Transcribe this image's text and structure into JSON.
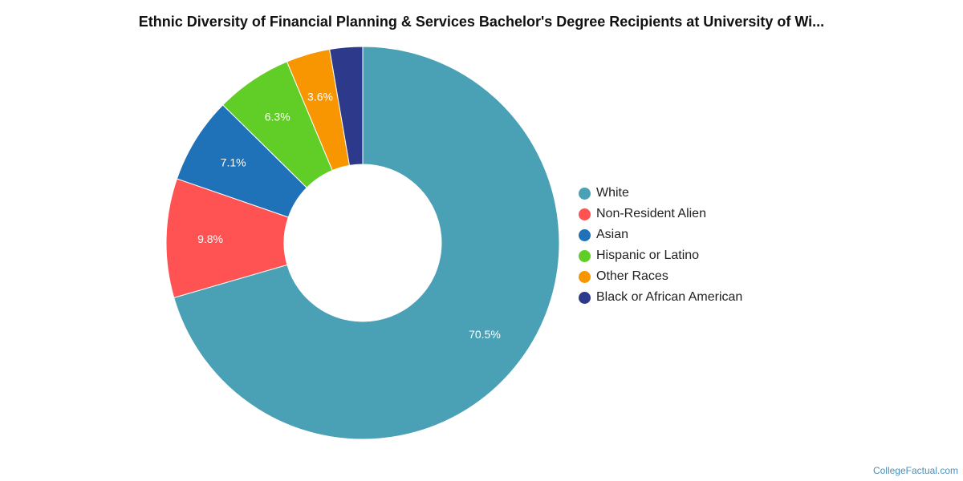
{
  "chart_data": {
    "type": "pie",
    "title": "Ethnic Diversity of Financial Planning & Services Bachelor's Degree Recipients at University of Wi...",
    "slices": [
      {
        "name": "White",
        "value": 70.5,
        "label": "70.5%",
        "color": "#4aa0b5"
      },
      {
        "name": "Non-Resident Alien",
        "value": 9.8,
        "label": "9.8%",
        "color": "#ff5252"
      },
      {
        "name": "Asian",
        "value": 7.1,
        "label": "7.1%",
        "color": "#1f72b8"
      },
      {
        "name": "Hispanic or Latino",
        "value": 6.3,
        "label": "6.3%",
        "color": "#61ce27"
      },
      {
        "name": "Other Races",
        "value": 3.6,
        "label": "3.6%",
        "color": "#f79600"
      },
      {
        "name": "Black or African American",
        "value": 2.7,
        "label": "",
        "color": "#2d3a8c"
      }
    ],
    "donut": true,
    "legend_placement": "right",
    "start": "top",
    "direction": "clockwise"
  },
  "watermark": "CollegeFactual.com"
}
